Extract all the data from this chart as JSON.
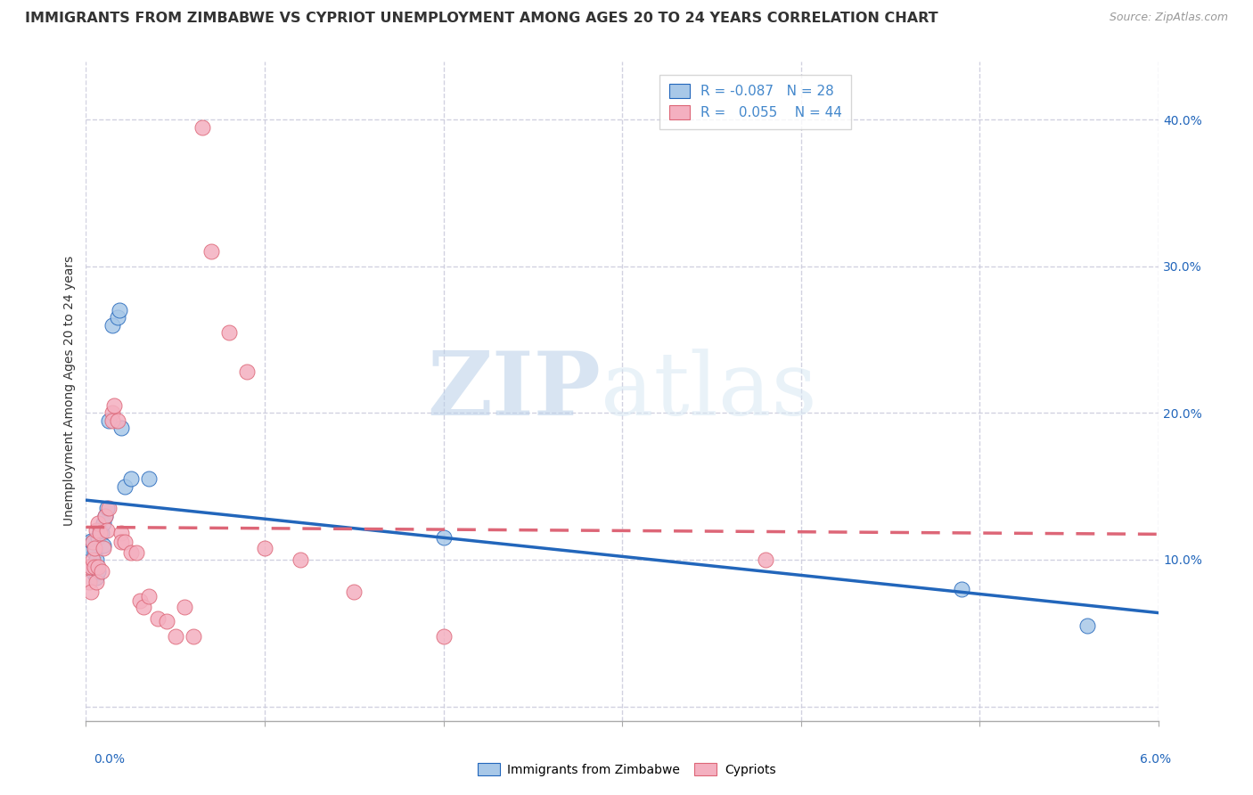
{
  "title": "IMMIGRANTS FROM ZIMBABWE VS CYPRIOT UNEMPLOYMENT AMONG AGES 20 TO 24 YEARS CORRELATION CHART",
  "source": "Source: ZipAtlas.com",
  "ylabel": "Unemployment Among Ages 20 to 24 years",
  "ytick_values": [
    0.0,
    0.1,
    0.2,
    0.3,
    0.4
  ],
  "xlim": [
    0.0,
    0.06
  ],
  "ylim": [
    -0.01,
    0.44
  ],
  "legend_blue_r": "R = -0.087",
  "legend_blue_n": "N = 28",
  "legend_pink_r": "R =  0.055",
  "legend_pink_n": "N = 44",
  "legend_label_blue": "Immigrants from Zimbabwe",
  "legend_label_pink": "Cypriots",
  "color_blue": "#a8c8e8",
  "color_pink": "#f4b0c0",
  "color_line_blue": "#2266bb",
  "color_line_pink": "#dd6677",
  "color_legend_text": "#4488cc",
  "watermark_zip": "ZIP",
  "watermark_atlas": "atlas",
  "grid_color": "#ccccdd",
  "bg_color": "#ffffff",
  "title_fontsize": 11.5,
  "axis_label_fontsize": 10,
  "tick_fontsize": 10,
  "source_fontsize": 9,
  "blue_points_x": [
    0.0002,
    0.0003,
    0.0003,
    0.0004,
    0.0004,
    0.0005,
    0.0005,
    0.0006,
    0.0006,
    0.0007,
    0.0007,
    0.0008,
    0.0009,
    0.001,
    0.001,
    0.0011,
    0.0012,
    0.0013,
    0.0015,
    0.0018,
    0.0019,
    0.002,
    0.0022,
    0.0025,
    0.0035,
    0.02,
    0.049,
    0.056
  ],
  "blue_points_y": [
    0.108,
    0.113,
    0.096,
    0.112,
    0.095,
    0.105,
    0.09,
    0.1,
    0.088,
    0.115,
    0.092,
    0.12,
    0.118,
    0.125,
    0.11,
    0.13,
    0.135,
    0.195,
    0.26,
    0.265,
    0.27,
    0.19,
    0.15,
    0.155,
    0.155,
    0.115,
    0.08,
    0.055
  ],
  "pink_points_x": [
    0.0001,
    0.0002,
    0.0003,
    0.0003,
    0.0004,
    0.0004,
    0.0005,
    0.0005,
    0.0006,
    0.0006,
    0.0007,
    0.0007,
    0.0008,
    0.0009,
    0.001,
    0.0011,
    0.0012,
    0.0013,
    0.0015,
    0.0015,
    0.0016,
    0.0018,
    0.002,
    0.002,
    0.0022,
    0.0025,
    0.0028,
    0.003,
    0.0032,
    0.0035,
    0.004,
    0.0045,
    0.005,
    0.0055,
    0.006,
    0.0065,
    0.007,
    0.008,
    0.009,
    0.01,
    0.012,
    0.015,
    0.02,
    0.038
  ],
  "pink_points_y": [
    0.095,
    0.085,
    0.078,
    0.095,
    0.1,
    0.112,
    0.095,
    0.108,
    0.12,
    0.085,
    0.125,
    0.095,
    0.118,
    0.092,
    0.108,
    0.13,
    0.12,
    0.135,
    0.2,
    0.195,
    0.205,
    0.195,
    0.118,
    0.112,
    0.112,
    0.105,
    0.105,
    0.072,
    0.068,
    0.075,
    0.06,
    0.058,
    0.048,
    0.068,
    0.048,
    0.395,
    0.31,
    0.255,
    0.228,
    0.108,
    0.1,
    0.078,
    0.048,
    0.1
  ]
}
